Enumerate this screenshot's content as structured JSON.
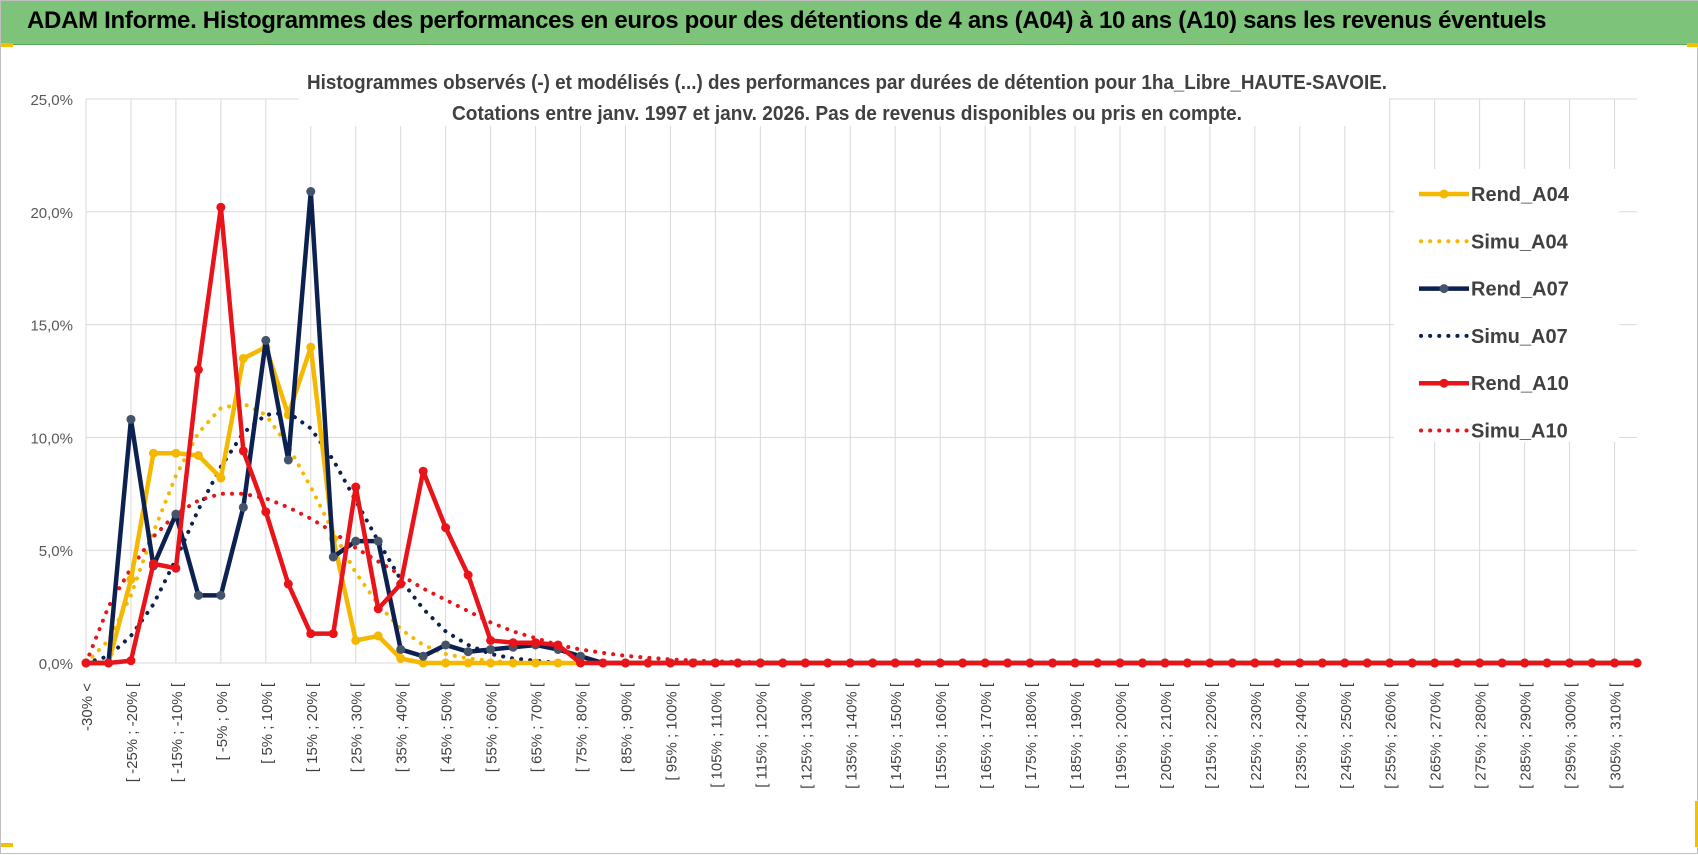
{
  "report": {
    "title": "ADAM Informe. Histogrammes des performances en euros pour des détentions de 4 ans (A04) à 10 ans (A10) sans les revenus éventuels"
  },
  "chart_data": {
    "type": "line",
    "title_lines": [
      "Histogrammes observés (-) et modélisés (...) des performances par durées de détention pour 1ha_Libre_HAUTE-SAVOIE.",
      "Cotations entre janv. 1997 et janv. 2026. Pas de revenus disponibles ou pris en compte."
    ],
    "xlabel": "",
    "ylabel": "",
    "ylim": [
      0,
      25
    ],
    "yticks": [
      "0,0%",
      "5,0%",
      "10,0%",
      "15,0%",
      "20,0%",
      "25,0%"
    ],
    "grid": true,
    "legend_position": "right",
    "x_labels": [
      "-30% <",
      "[ -25% ; -20% [",
      "[ -15% ; -10% [",
      "[ -5% ; 0% [",
      "[ 5% ; 10% [",
      "[ 15% ; 20% [",
      "[ 25% ; 30% [",
      "[ 35% ; 40% [",
      "[ 45% ; 50% [",
      "[ 55% ; 60% [",
      "[ 65% ; 70% [",
      "[ 75% ; 80% [",
      "[ 85% ; 90% [",
      "[ 95% ; 100% [",
      "[ 105% ; 110% [",
      "[ 115% ; 120% [",
      "[ 125% ; 130% [",
      "[ 135% ; 140% [",
      "[ 145% ; 150% [",
      "[ 155% ; 160% [",
      "[ 165% ; 170% [",
      "[ 175% ; 180% [",
      "[ 185% ; 190% [",
      "[ 195% ; 200% [",
      "[ 205% ; 210% [",
      "[ 215% ; 220% [",
      "[ 225% ; 230% [",
      "[ 235% ; 240% [",
      "[ 245% ; 250% [",
      "[ 255% ; 260% [",
      "[ 265% ; 270% [",
      "[ 275% ; 280% [",
      "[ 285% ; 290% [",
      "[ 295% ; 300% [",
      "[ 305% ; 310% ["
    ],
    "series": [
      {
        "name": "Rend_A04",
        "color": "#f5b800",
        "style": "solid",
        "values": [
          0,
          0,
          3.7,
          9.3,
          9.3,
          9.2,
          8.2,
          13.5,
          14.0,
          11.0,
          14.0,
          5.5,
          1.0,
          1.2,
          0.2,
          0.0,
          0.0,
          0.0,
          0.0,
          0.0,
          0.0,
          0.0,
          0.0,
          0.0,
          0.0,
          0.0,
          0.0,
          0.0,
          0.0,
          0.0,
          0.0,
          0.0,
          0.0,
          0.0,
          0.0,
          0.0,
          0.0,
          0.0,
          0.0,
          0.0,
          0.0,
          0.0,
          0.0,
          0.0,
          0.0,
          0.0,
          0.0,
          0.0,
          0.0,
          0.0,
          0.0,
          0.0,
          0.0,
          0.0,
          0.0,
          0.0,
          0.0,
          0.0,
          0.0,
          0.0,
          0.0,
          0.0,
          0.0,
          0.0,
          0.0,
          0.0,
          0.0,
          0.0,
          0.0,
          0.0
        ]
      },
      {
        "name": "Simu_A04",
        "color": "#f5b800",
        "style": "dotted",
        "values": [
          0,
          1.0,
          3.0,
          5.8,
          8.3,
          10.2,
          11.3,
          11.5,
          11.0,
          9.6,
          7.8,
          5.8,
          4.0,
          2.6,
          1.5,
          0.8,
          0.4,
          0.2,
          0.1,
          0.0,
          0.0,
          0.0,
          0.0,
          0.0,
          0.0,
          0.0,
          0.0,
          0.0,
          0.0,
          0.0,
          0.0,
          0.0,
          0.0,
          0.0,
          0.0,
          0.0,
          0.0,
          0.0,
          0.0,
          0.0,
          0.0,
          0.0,
          0.0,
          0.0,
          0.0,
          0.0,
          0.0,
          0.0,
          0.0,
          0.0,
          0.0,
          0.0,
          0.0,
          0.0,
          0.0,
          0.0,
          0.0,
          0.0,
          0.0,
          0.0,
          0.0,
          0.0,
          0.0,
          0.0,
          0.0,
          0.0,
          0.0,
          0.0,
          0.0,
          0.0
        ]
      },
      {
        "name": "Rend_A07",
        "color": "#0d2150",
        "style": "solid",
        "values": [
          0,
          0,
          10.8,
          4.3,
          6.6,
          3.0,
          3.0,
          6.9,
          14.3,
          9.0,
          20.9,
          4.7,
          5.4,
          5.4,
          0.6,
          0.3,
          0.8,
          0.5,
          0.6,
          0.7,
          0.8,
          0.6,
          0.3,
          0.0,
          0.0,
          0.0,
          0.0,
          0.0,
          0.0,
          0.0,
          0.0,
          0.0,
          0.0,
          0.0,
          0.0,
          0.0,
          0.0,
          0.0,
          0.0,
          0.0,
          0.0,
          0.0,
          0.0,
          0.0,
          0.0,
          0.0,
          0.0,
          0.0,
          0.0,
          0.0,
          0.0,
          0.0,
          0.0,
          0.0,
          0.0,
          0.0,
          0.0,
          0.0,
          0.0,
          0.0,
          0.0,
          0.0,
          0.0,
          0.0,
          0.0,
          0.0,
          0.0,
          0.0,
          0.0,
          0.0
        ]
      },
      {
        "name": "Simu_A07",
        "color": "#0d2150",
        "style": "dotted",
        "values": [
          0,
          0.3,
          1.2,
          2.6,
          4.6,
          6.8,
          8.7,
          10.2,
          11.0,
          11.1,
          10.4,
          9.0,
          7.2,
          5.4,
          3.7,
          2.4,
          1.4,
          0.8,
          0.4,
          0.2,
          0.1,
          0.0,
          0.0,
          0.0,
          0.0,
          0.0,
          0.0,
          0.0,
          0.0,
          0.0,
          0.0,
          0.0,
          0.0,
          0.0,
          0.0,
          0.0,
          0.0,
          0.0,
          0.0,
          0.0,
          0.0,
          0.0,
          0.0,
          0.0,
          0.0,
          0.0,
          0.0,
          0.0,
          0.0,
          0.0,
          0.0,
          0.0,
          0.0,
          0.0,
          0.0,
          0.0,
          0.0,
          0.0,
          0.0,
          0.0,
          0.0,
          0.0,
          0.0,
          0.0,
          0.0,
          0.0,
          0.0,
          0.0,
          0.0,
          0.0
        ]
      },
      {
        "name": "Rend_A10",
        "color": "#e8141a",
        "style": "solid",
        "values": [
          0,
          0,
          0.1,
          4.4,
          4.2,
          13.0,
          20.2,
          9.4,
          6.7,
          3.5,
          1.3,
          1.3,
          7.8,
          2.4,
          3.5,
          8.5,
          6.0,
          3.9,
          1.0,
          0.9,
          0.9,
          0.8,
          0.0,
          0.0,
          0.0,
          0.0,
          0.0,
          0.0,
          0.0,
          0.0,
          0.0,
          0.0,
          0.0,
          0.0,
          0.0,
          0.0,
          0.0,
          0.0,
          0.0,
          0.0,
          0.0,
          0.0,
          0.0,
          0.0,
          0.0,
          0.0,
          0.0,
          0.0,
          0.0,
          0.0,
          0.0,
          0.0,
          0.0,
          0.0,
          0.0,
          0.0,
          0.0,
          0.0,
          0.0,
          0.0,
          0.0,
          0.0,
          0.0,
          0.0,
          0.0,
          0.0,
          0.0,
          0.0,
          0.0,
          0.0
        ]
      },
      {
        "name": "Simu_A10",
        "color": "#e8141a",
        "style": "dotted",
        "values": [
          0,
          2.5,
          4.2,
          5.6,
          6.6,
          7.2,
          7.5,
          7.5,
          7.3,
          6.9,
          6.4,
          5.8,
          5.1,
          4.5,
          3.9,
          3.3,
          2.8,
          2.3,
          1.8,
          1.4,
          1.1,
          0.8,
          0.6,
          0.45,
          0.32,
          0.23,
          0.16,
          0.11,
          0.07,
          0.05,
          0.03,
          0.02,
          0.0,
          0.0,
          0.0,
          0.0,
          0.0,
          0.0,
          0.0,
          0.0,
          0.0,
          0.0,
          0.0,
          0.0,
          0.0,
          0.0,
          0.0,
          0.0,
          0.0,
          0.0,
          0.0,
          0.0,
          0.0,
          0.0,
          0.0,
          0.0,
          0.0,
          0.0,
          0.0,
          0.0,
          0.0,
          0.0,
          0.0,
          0.0,
          0.0,
          0.0,
          0.0,
          0.0,
          0.0,
          0.0
        ]
      }
    ]
  }
}
